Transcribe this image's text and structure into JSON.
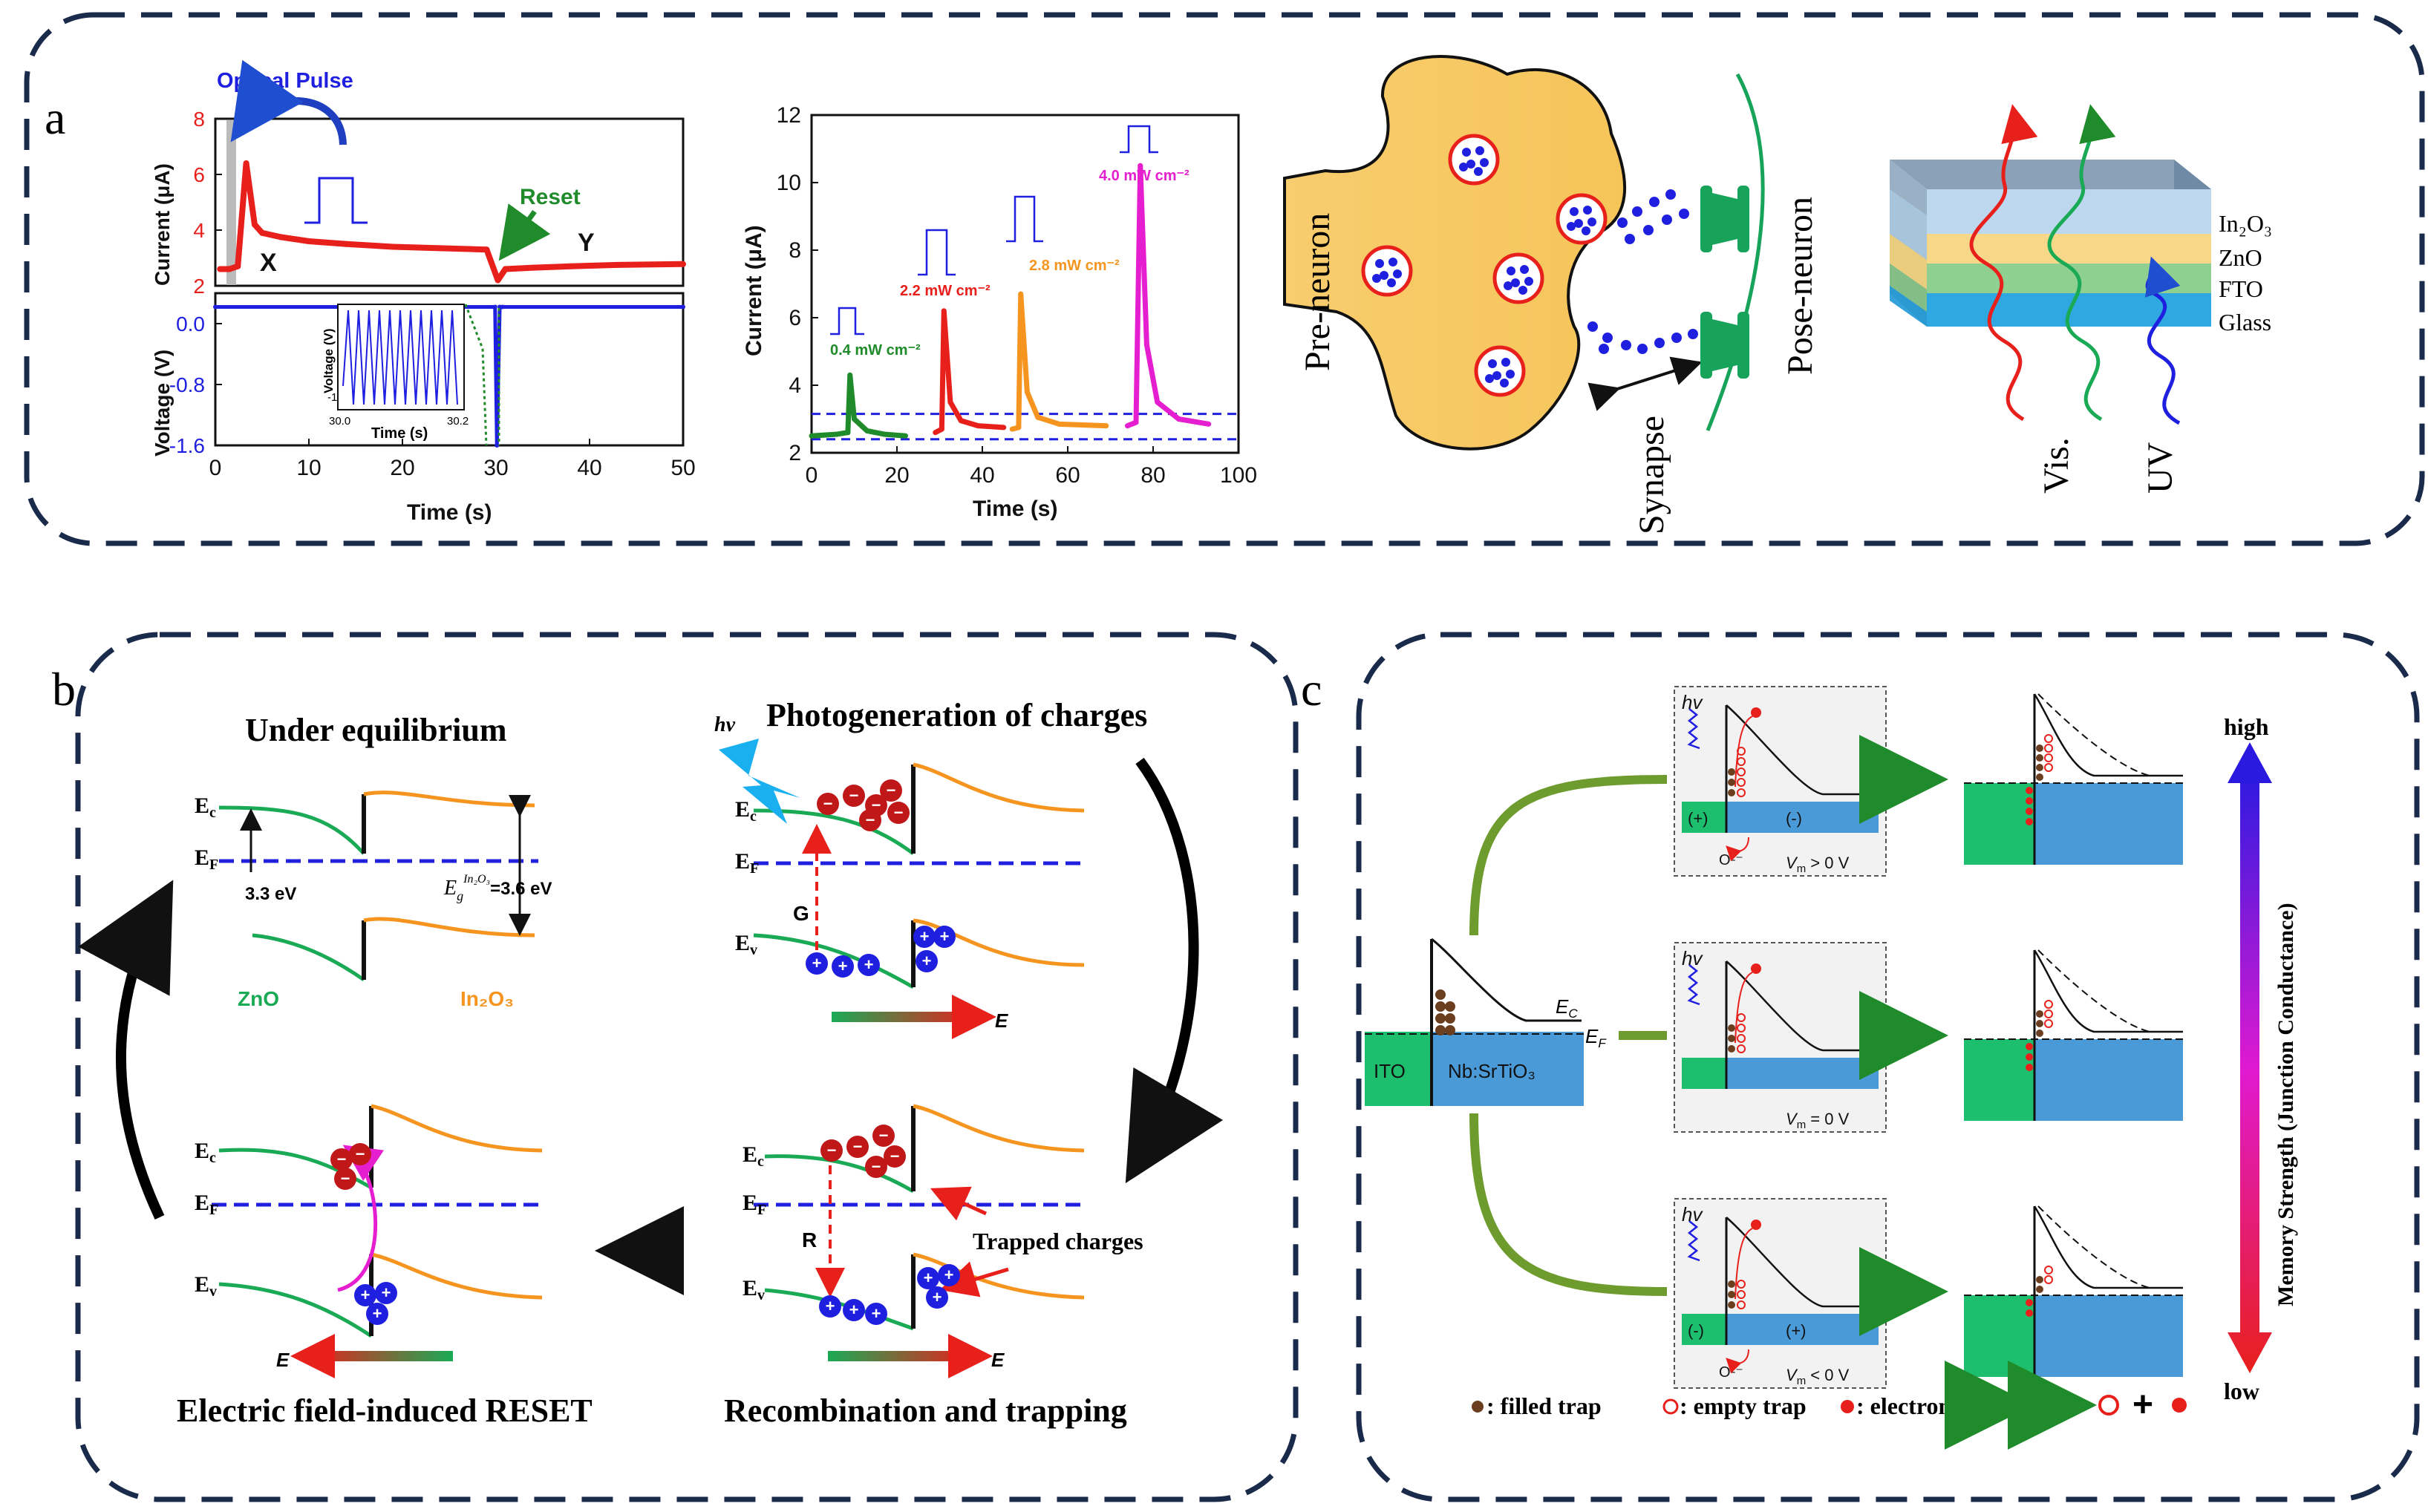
{
  "panel_labels": {
    "a": "a",
    "b": "b",
    "c": "c"
  },
  "colors": {
    "navy": "#1a2a4a",
    "red": "#e8201c",
    "blue": "#1f1fe0",
    "green": "#1f8b2a",
    "orange": "#f5951f",
    "magenta": "#e51fd0",
    "cyan": "#1f4fd0",
    "yellow": "#f8cd6e",
    "synapse_green": "#17a35a",
    "olive": "#6d9b2d",
    "ito_green": "#1dbf6e",
    "nb_blue": "#4a9ad8"
  },
  "panel_a": {
    "chart1": {
      "title": "Optical Pulse",
      "top_ylabel": "Current (μA)",
      "bottom_ylabel": "Voltage (V)",
      "xlabel": "Time (s)",
      "label_x": "X",
      "label_y": "Y",
      "reset_label": "Reset",
      "inset_ylabel": "Voltage (V)",
      "inset_xlabel": "Time (s)",
      "inset_ytick": "-1",
      "inset_xticks": [
        "30.0",
        "30.2"
      ]
    },
    "chart2": {
      "ylabel": "Current (μA)",
      "xlabel": "Time (s)",
      "pulse_labels": [
        "0.4 mW cm⁻²",
        "2.2 mW cm⁻²",
        "2.8 mW cm⁻²",
        "4.0 mW cm⁻²"
      ]
    },
    "neuron": {
      "pre": "Pre-neuron",
      "post": "Pose-neuron",
      "synapse": "Synapse"
    },
    "stack": {
      "layers": [
        "In₂O₃",
        "ZnO",
        "FTO",
        "Glass"
      ],
      "vis": "Vis.",
      "uv": "UV"
    }
  },
  "chart_data": [
    {
      "type": "line",
      "title": "Optical Pulse",
      "xlabel": "Time (s)",
      "xlim": [
        0,
        50
      ],
      "xticks": [
        0,
        10,
        20,
        30,
        40,
        50
      ],
      "series": [
        {
          "name": "Current (μA)",
          "color": "red",
          "ylim": [
            2,
            8
          ],
          "yticks": [
            2,
            4,
            6,
            8
          ],
          "x": [
            0.5,
            1.5,
            2.4,
            3.3,
            4.2,
            5,
            7,
            10,
            14,
            19,
            24,
            29,
            30.2,
            31,
            34,
            38,
            43,
            50
          ],
          "y": [
            2.6,
            2.6,
            2.7,
            6.4,
            4.2,
            3.9,
            3.75,
            3.6,
            3.5,
            3.4,
            3.35,
            3.3,
            2.2,
            2.6,
            2.65,
            2.7,
            2.75,
            2.78
          ]
        },
        {
          "name": "Voltage (V)",
          "color": "blue",
          "ylim": [
            -1.6,
            0.4
          ],
          "yticks": [
            0.0,
            -0.8,
            -1.6
          ],
          "x": [
            0,
            29.9,
            30.1,
            30.4,
            30.7,
            50
          ],
          "y": [
            0.22,
            0.22,
            -1.6,
            0.22,
            0.22,
            0.22
          ]
        }
      ]
    },
    {
      "type": "line",
      "xlabel": "Time (s)",
      "ylabel": "Current (μA)",
      "xlim": [
        0,
        100
      ],
      "ylim": [
        2,
        12
      ],
      "xticks": [
        0,
        20,
        40,
        60,
        80,
        100
      ],
      "yticks": [
        2,
        4,
        6,
        8,
        10,
        12
      ],
      "series": [
        {
          "name": "0.4 mW cm⁻²",
          "color": "green",
          "x": [
            0,
            6,
            8.5,
            9,
            10,
            13,
            17,
            22
          ],
          "y": [
            2.5,
            2.55,
            2.6,
            4.3,
            3.0,
            2.65,
            2.55,
            2.5
          ]
        },
        {
          "name": "2.2 mW cm⁻²",
          "color": "red",
          "x": [
            29,
            30.5,
            31,
            32.5,
            35,
            39,
            45
          ],
          "y": [
            2.6,
            2.7,
            6.2,
            3.5,
            2.95,
            2.8,
            2.75
          ]
        },
        {
          "name": "2.8 mW cm⁻²",
          "color": "orange",
          "x": [
            47,
            48.5,
            49,
            50.5,
            53,
            58,
            69
          ],
          "y": [
            2.7,
            2.75,
            6.7,
            3.8,
            3.05,
            2.85,
            2.8
          ]
        },
        {
          "name": "4.0 mW cm⁻²",
          "color": "magenta",
          "x": [
            74,
            76,
            77,
            78.5,
            81,
            86,
            93
          ],
          "y": [
            2.8,
            2.9,
            10.5,
            5.2,
            3.5,
            3.0,
            2.85
          ]
        }
      ],
      "hlines": [
        3.15,
        2.4
      ]
    }
  ],
  "panel_b": {
    "titles": {
      "eq": "Under equilibrium",
      "photo": "Photogeneration of charges",
      "reset": "Electric field-induced RESET",
      "recomb": "Recombination and trapping"
    },
    "labels": {
      "ec": "E",
      "ec_sub": "c",
      "ef": "E",
      "ef_sub": "F",
      "ev": "E",
      "ev_sub": "v",
      "zno": "ZnO",
      "in2o3": "In₂O₃",
      "gap1": "3.3 eV",
      "gap2_pre": "E",
      "gap2_sup": "In₂O₃",
      "gap2_sub": "g",
      "gap2_val": "=3.6 eV",
      "hv": "hv",
      "g": "G",
      "r": "R",
      "e_axis": "E",
      "trapped": "Trapped charges"
    }
  },
  "panel_c": {
    "labels": {
      "hv": "hv",
      "ec": "E",
      "ec_sub": "C",
      "ef": "E",
      "ef_sub": "F",
      "ito": "ITO",
      "nb": "Nb:SrTiO₃",
      "plus": "(+)",
      "minus": "(-)",
      "o2": "O²⁻",
      "vm_pos": "V",
      "vm_pos_rest": " > 0 V",
      "vm_zero_rest": " = 0 V",
      "vm_neg_rest": " < 0 V",
      "vm_sub": "m"
    },
    "legend": {
      "filled": ": filled trap",
      "empty": ": empty trap",
      "electron": ": electron",
      "plus_sign": "+"
    },
    "scale": {
      "high": "high",
      "low": "low",
      "label": "Memory Strength (Junction Conductance)"
    }
  }
}
